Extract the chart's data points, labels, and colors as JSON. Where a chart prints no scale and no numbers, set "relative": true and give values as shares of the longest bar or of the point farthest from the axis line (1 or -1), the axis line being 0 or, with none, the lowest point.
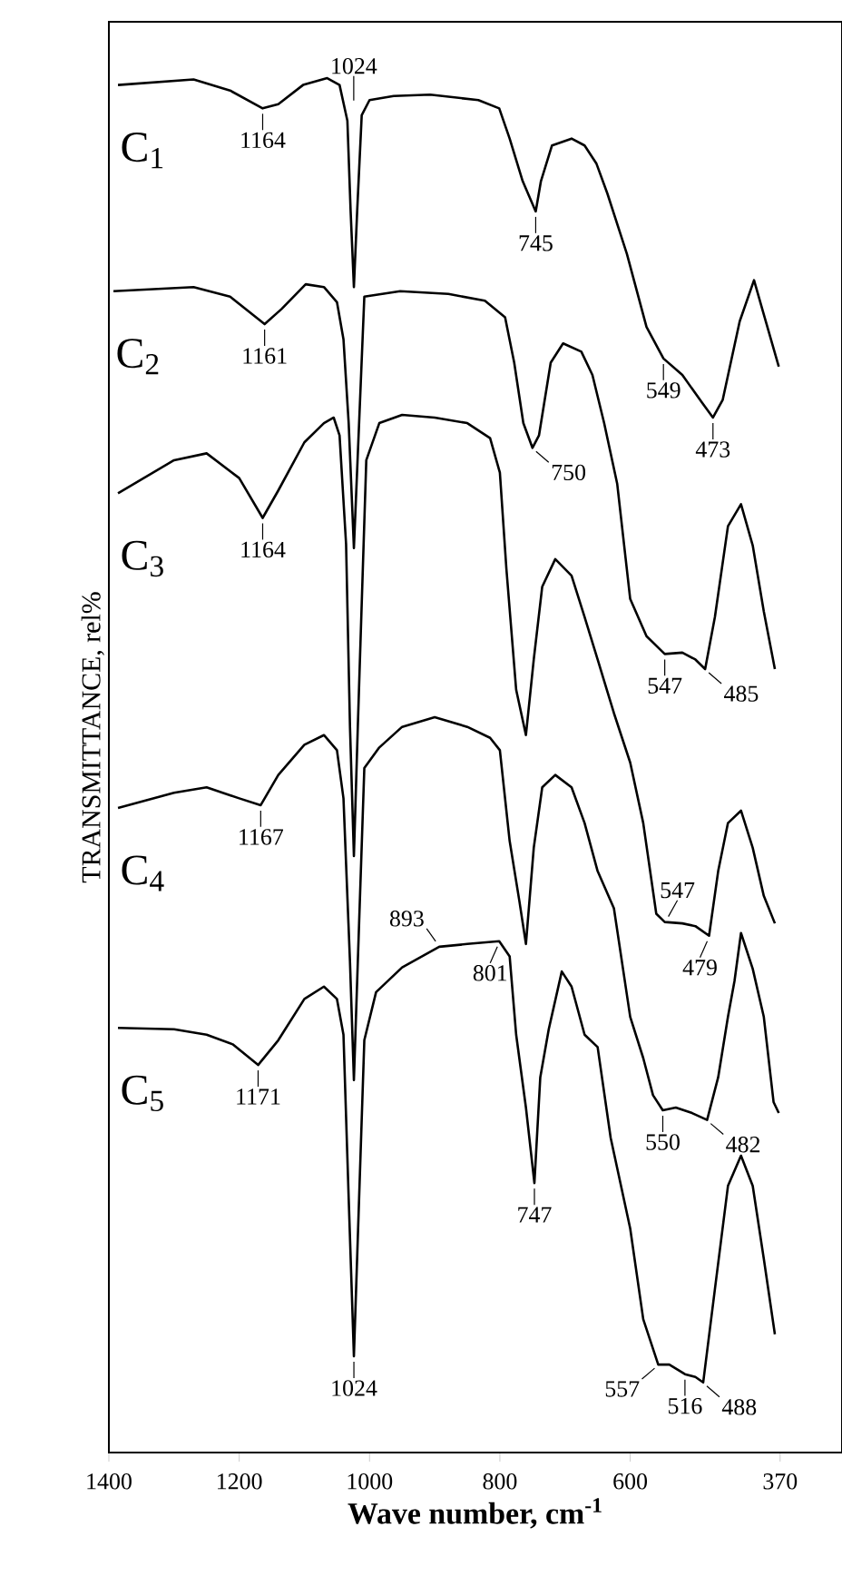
{
  "chart_data": {
    "type": "line",
    "relative": true,
    "legend": "left",
    "xlabel": "Wave number, cm$^{-1}$",
    "ylabel": "TRANSMITTANCE, rel%",
    "xlim": [
      1400,
      275
    ],
    "xticks": [
      1400,
      1200,
      1000,
      800,
      600,
      370
    ],
    "series": [
      {
        "name": "C$_{1}$",
        "color": "#000000",
        "x": [
          1386,
          1270,
          1214,
          1164,
          1140,
          1102,
          1065,
          1046,
          1034,
          1029,
          1024,
          1019,
          1012,
          1000,
          963,
          907,
          833,
          801,
          785,
          765,
          745,
          737,
          720,
          690,
          670,
          652,
          635,
          605,
          575,
          549,
          520,
          490,
          473,
          458,
          432,
          410,
          395,
          372
        ],
        "values": [
          0.995,
          0.999,
          0.991,
          0.978,
          0.981,
          0.995,
          1,
          0.995,
          0.969,
          0.903,
          0.848,
          0.903,
          0.973,
          0.984,
          0.987,
          0.988,
          0.984,
          0.978,
          0.956,
          0.925,
          0.903,
          0.925,
          0.951,
          0.956,
          0.951,
          0.938,
          0.916,
          0.872,
          0.819,
          0.796,
          0.784,
          0.764,
          0.753,
          0.766,
          0.823,
          0.853,
          0.828,
          0.79
        ]
      },
      {
        "name": "C$_{2}$",
        "color": "#000000",
        "x": [
          1393,
          1270,
          1214,
          1161,
          1135,
          1098,
          1070,
          1050,
          1040,
          1032,
          1024,
          1016,
          1008,
          953,
          879,
          823,
          792,
          778,
          764,
          750,
          740,
          722,
          703,
          675,
          658,
          640,
          620,
          600,
          575,
          547,
          520,
          500,
          485,
          470,
          450,
          430,
          412,
          395,
          378
        ],
        "values": [
          0.845,
          0.848,
          0.841,
          0.821,
          0.832,
          0.85,
          0.848,
          0.837,
          0.81,
          0.749,
          0.658,
          0.749,
          0.841,
          0.845,
          0.843,
          0.838,
          0.826,
          0.793,
          0.749,
          0.731,
          0.74,
          0.793,
          0.807,
          0.801,
          0.784,
          0.749,
          0.705,
          0.621,
          0.594,
          0.581,
          0.582,
          0.577,
          0.57,
          0.608,
          0.674,
          0.69,
          0.66,
          0.612,
          0.57
        ]
      },
      {
        "name": "C$_{3}$",
        "color": "#000000",
        "x": [
          1386,
          1300,
          1250,
          1200,
          1164,
          1140,
          1100,
          1070,
          1055,
          1046,
          1036,
          1030,
          1024,
          1018,
          1005,
          985,
          950,
          900,
          850,
          815,
          800,
          790,
          775,
          760,
          748,
          735,
          715,
          690,
          670,
          650,
          625,
          600,
          580,
          560,
          547,
          520,
          500,
          479,
          465,
          450,
          430,
          412,
          395,
          378
        ],
        "values": [
          0.698,
          0.722,
          0.727,
          0.709,
          0.68,
          0.7,
          0.735,
          0.749,
          0.753,
          0.74,
          0.661,
          0.528,
          0.434,
          0.528,
          0.722,
          0.749,
          0.755,
          0.753,
          0.749,
          0.738,
          0.713,
          0.643,
          0.555,
          0.522,
          0.577,
          0.63,
          0.65,
          0.638,
          0.608,
          0.577,
          0.538,
          0.502,
          0.458,
          0.392,
          0.386,
          0.385,
          0.383,
          0.376,
          0.423,
          0.458,
          0.467,
          0.44,
          0.405,
          0.385
        ]
      },
      {
        "name": "C$_{4}$",
        "color": "#000000",
        "x": [
          1386,
          1300,
          1250,
          1200,
          1167,
          1140,
          1100,
          1070,
          1050,
          1040,
          1030,
          1024,
          1018,
          1008,
          985,
          950,
          900,
          850,
          815,
          800,
          785,
          770,
          760,
          748,
          735,
          715,
          690,
          670,
          650,
          625,
          600,
          580,
          565,
          550,
          530,
          505,
          482,
          465,
          450,
          440,
          430,
          412,
          395,
          380,
          372
        ],
        "values": [
          0.469,
          0.48,
          0.484,
          0.476,
          0.471,
          0.493,
          0.515,
          0.522,
          0.511,
          0.476,
          0.357,
          0.271,
          0.357,
          0.498,
          0.513,
          0.528,
          0.535,
          0.528,
          0.52,
          0.511,
          0.445,
          0.401,
          0.37,
          0.44,
          0.484,
          0.493,
          0.484,
          0.458,
          0.423,
          0.396,
          0.317,
          0.287,
          0.26,
          0.249,
          0.251,
          0.247,
          0.242,
          0.273,
          0.317,
          0.343,
          0.378,
          0.352,
          0.317,
          0.255,
          0.247
        ]
      },
      {
        "name": "C$_{5}$",
        "color": "#000000",
        "x": [
          1386,
          1300,
          1250,
          1210,
          1171,
          1140,
          1100,
          1070,
          1050,
          1040,
          1032,
          1024,
          1016,
          1008,
          990,
          950,
          893,
          850,
          801,
          785,
          775,
          760,
          747,
          738,
          725,
          705,
          690,
          670,
          650,
          630,
          600,
          580,
          557,
          540,
          516,
          500,
          488,
          470,
          450,
          430,
          412,
          395,
          378
        ],
        "values": [
          0.309,
          0.308,
          0.304,
          0.297,
          0.282,
          0.3,
          0.33,
          0.339,
          0.33,
          0.304,
          0.185,
          0.07,
          0.185,
          0.3,
          0.335,
          0.353,
          0.368,
          0.37,
          0.372,
          0.361,
          0.304,
          0.251,
          0.196,
          0.273,
          0.308,
          0.35,
          0.339,
          0.304,
          0.295,
          0.229,
          0.163,
          0.097,
          0.064,
          0.064,
          0.057,
          0.055,
          0.051,
          0.119,
          0.194,
          0.216,
          0.194,
          0.141,
          0.086
        ]
      }
    ],
    "annotations": [
      "1024",
      {
        "text": "1164",
        "x": 1164,
        "y": 0.978
      },
      {
        "text": "745",
        "x": 745,
        "y": 0.903
      },
      {
        "text": "549",
        "x": 549,
        "y": 0.796
      },
      {
        "text": "473",
        "x": 473,
        "y": 0.753
      },
      {
        "text": "1161",
        "x": 1161,
        "y": 0.821
      },
      {
        "text": "750",
        "x": 750,
        "y": 0.731
      },
      {
        "text": "547",
        "x": 547,
        "y": 0.581
      },
      {
        "text": "485",
        "x": 485,
        "y": 0.57
      },
      {
        "text": "1164",
        "x": 1164,
        "y": 0.68
      },
      {
        "text": "547",
        "x": 547,
        "y": 0.386
      },
      {
        "text": "479",
        "x": 479,
        "y": 0.376
      },
      {
        "text": "1167",
        "x": 1167,
        "y": 0.471
      },
      {
        "text": "893",
        "x": 893,
        "y": 0.368
      },
      {
        "text": "801",
        "x": 801,
        "y": 0.372
      },
      {
        "text": "550",
        "x": 550,
        "y": 0.249
      },
      {
        "text": "482",
        "x": 482,
        "y": 0.242
      },
      {
        "text": "1171",
        "x": 1171,
        "y": 0.282
      },
      {
        "text": "747",
        "x": 747,
        "y": 0.196
      },
      {
        "text": "1024",
        "x": 1024,
        "y": 0.07
      },
      {
        "text": "557",
        "x": 557,
        "y": 0.064
      },
      {
        "text": "516",
        "x": 516,
        "y": 0.057
      },
      {
        "text": "488",
        "x": 488,
        "y": 0.051
      }
    ]
  }
}
